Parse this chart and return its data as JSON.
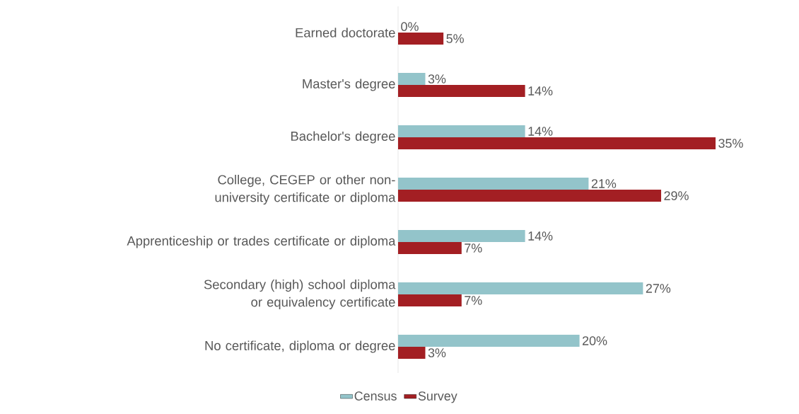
{
  "chart_data": {
    "type": "bar",
    "orientation": "horizontal",
    "categories": [
      "Earned doctorate",
      "Master's degree",
      "Bachelor's degree",
      "College, CEGEP or other non-university certificate or diploma",
      "Apprenticeship or trades certificate or diploma",
      "Secondary (high) school diploma or equivalency certificate",
      "No certificate, diploma or degree"
    ],
    "series": [
      {
        "name": "Census",
        "color": "#93c4ca",
        "values": [
          0,
          3,
          14,
          21,
          14,
          27,
          20
        ],
        "value_labels": [
          "0%",
          "3%",
          "14%",
          "21%",
          "14%",
          "27%",
          "20%"
        ]
      },
      {
        "name": "Survey",
        "color": "#a31f23",
        "values": [
          5,
          14,
          35,
          29,
          7,
          7,
          3
        ],
        "value_labels": [
          "5%",
          "14%",
          "35%",
          "29%",
          "7%",
          "7%",
          "3%"
        ]
      }
    ],
    "legend": "bottom"
  }
}
